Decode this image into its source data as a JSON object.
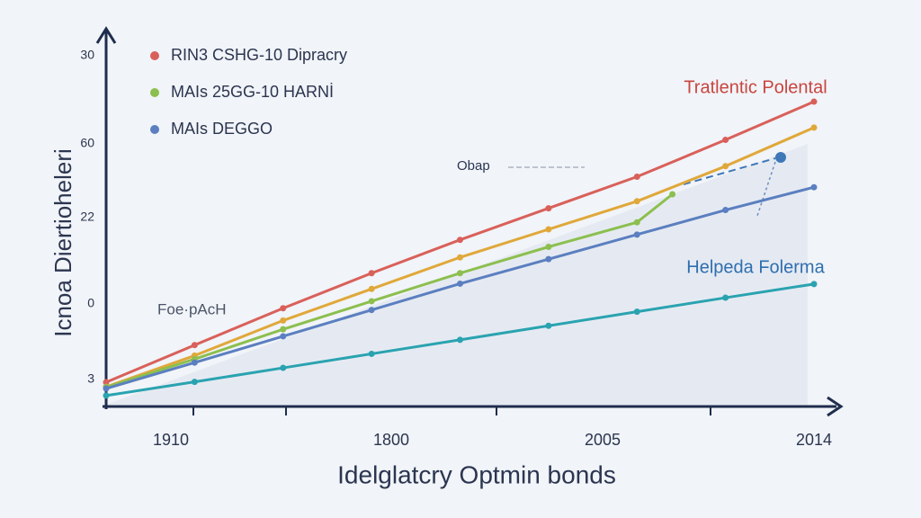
{
  "chart_data": {
    "type": "line",
    "y_axis_label": "Icnoa Diertioheleri",
    "x_axis_label": "Idelglatcry Optmin bonds",
    "y_labels": [
      "30",
      "60",
      "22",
      "0",
      "3"
    ],
    "x_labels": [
      "1910",
      "1800",
      "2005",
      "2014"
    ],
    "annotations": [
      "Tratlentic Polental",
      "Helpeda Folerma",
      "Obap",
      "Foe·pAcH"
    ],
    "xlim": [
      0,
      100
    ],
    "ylim": [
      0,
      100
    ],
    "series": [
      {
        "name": "RIN3 CSHG-10 Dipracry",
        "color": "#d9605a",
        "x": [
          0,
          12.5,
          25,
          37.5,
          50,
          62.5,
          75,
          87.5,
          100
        ],
        "values": [
          6.4,
          17,
          27.5,
          37.5,
          47,
          56,
          65,
          75.5,
          86.4
        ]
      },
      {
        "color": "#e0a83a",
        "x": [
          0,
          12.5,
          25,
          37.5,
          50,
          62.5,
          75,
          87.5,
          100
        ],
        "values": [
          5.1,
          14,
          24,
          33,
          42,
          50,
          58,
          68,
          79
        ]
      },
      {
        "name": "MAIs 25GG-10 HARNİ",
        "color": "#8cbf4f",
        "x": [
          0,
          12.5,
          25,
          37.5,
          50,
          62.5,
          75,
          80
        ],
        "values": [
          5,
          13,
          21.5,
          29.5,
          37.5,
          45,
          52,
          60
        ]
      },
      {
        "name": "MAIs DEGGO",
        "color": "#5b7fc0",
        "x": [
          0,
          12.5,
          25,
          37.5,
          50,
          62.5,
          75,
          87.5,
          100
        ],
        "values": [
          4.6,
          12,
          19.5,
          27,
          34.5,
          41.5,
          48.5,
          55.5,
          62
        ]
      },
      {
        "color": "#2aa3b0",
        "x": [
          0,
          12.5,
          25,
          37.5,
          50,
          62.5,
          75,
          87.5,
          100
        ],
        "values": [
          2.6,
          6.5,
          10.5,
          14.5,
          18.5,
          22.5,
          26.5,
          30.5,
          34.4
        ]
      }
    ]
  }
}
